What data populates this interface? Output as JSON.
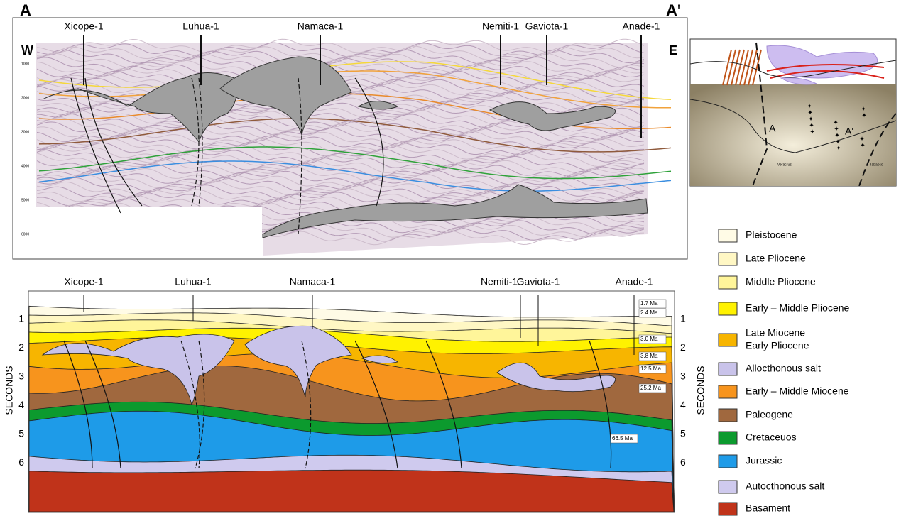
{
  "header": {
    "left_label": "A",
    "right_label": "A'"
  },
  "seismic_section": {
    "wells": [
      "Xicope-1",
      "Luhua-1",
      "Namaca-1",
      "Nemiti-1",
      "Gaviota-1",
      "Anade-1"
    ],
    "west": "W",
    "east": "E",
    "depth_ticks": [
      "1000",
      "2000",
      "3000",
      "4000",
      "5000",
      "6000"
    ]
  },
  "location_map": {
    "labels": [
      "A",
      "A'",
      "Veracruz",
      "Tabasco"
    ]
  },
  "cross_section": {
    "wells": [
      "Xicope-1",
      "Luhua-1",
      "Namaca-1",
      "Nemiti-1",
      "Gaviota-1",
      "Anade-1"
    ],
    "axis_label": "SECONDS",
    "ticks": [
      "1",
      "2",
      "3",
      "4",
      "5",
      "6"
    ],
    "ages": [
      "1.7 Ma",
      "2.4 Ma",
      "3.0 Ma",
      "3.8 Ma",
      "12.5 Ma",
      "25.2 Ma",
      "66.5 Ma"
    ]
  },
  "legend": [
    {
      "lines": [
        "Pleistocene"
      ],
      "color": "#fffbe6"
    },
    {
      "lines": [
        "Late Pliocene"
      ],
      "color": "#fff7c4"
    },
    {
      "lines": [
        "Middle Pliocene"
      ],
      "color": "#fff59a"
    },
    {
      "lines": [
        "Early – Middle Pliocene"
      ],
      "color": "#fff200"
    },
    {
      "lines": [
        "Late Miocene",
        "Early Pliocene"
      ],
      "color": "#f7b500"
    },
    {
      "lines": [
        "Allocthonous salt"
      ],
      "color": "#c9c3ea"
    },
    {
      "lines": [
        "Early – Middle Miocene"
      ],
      "color": "#f7941d"
    },
    {
      "lines": [
        "Paleogene"
      ],
      "color": "#a0683e"
    },
    {
      "lines": [
        "Cretaceuos"
      ],
      "color": "#0c9a2e"
    },
    {
      "lines": [
        "Jurassic"
      ],
      "color": "#1e9be8"
    },
    {
      "lines": [
        "Autocthonous salt"
      ],
      "color": "#cfcaee"
    },
    {
      "lines": [
        "Basament"
      ],
      "color": "#c0331a"
    }
  ]
}
